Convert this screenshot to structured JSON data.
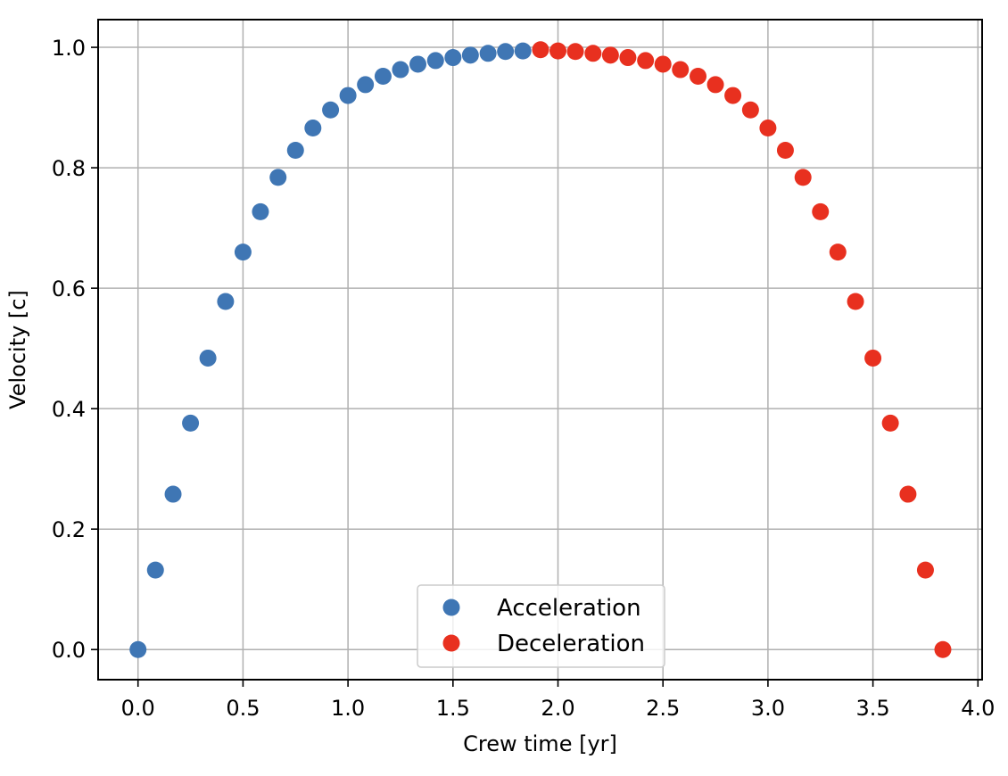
{
  "chart_data": {
    "type": "scatter",
    "title": "",
    "xlabel": "Crew time [yr]",
    "ylabel": "Velocity [c]",
    "xlim": [
      -0.19,
      4.02
    ],
    "ylim": [
      -0.05,
      1.046
    ],
    "xticks": [
      0.0,
      0.5,
      1.0,
      1.5,
      2.0,
      2.5,
      3.0,
      3.5,
      4.0
    ],
    "xtick_labels": [
      "0.0",
      "0.5",
      "1.0",
      "1.5",
      "2.0",
      "2.5",
      "3.0",
      "3.5",
      "4.0"
    ],
    "yticks": [
      0.0,
      0.2,
      0.4,
      0.6,
      0.8,
      1.0
    ],
    "ytick_labels": [
      "0.0",
      "0.2",
      "0.4",
      "0.6",
      "0.8",
      "1.0"
    ],
    "grid": true,
    "legend_position": "lower center",
    "series": [
      {
        "name": "Acceleration",
        "color": "#3f76b4",
        "x": [
          0.0,
          0.083,
          0.167,
          0.25,
          0.333,
          0.417,
          0.5,
          0.583,
          0.667,
          0.75,
          0.833,
          0.917,
          1.0,
          1.083,
          1.167,
          1.25,
          1.333,
          1.417,
          1.5,
          1.583,
          1.667,
          1.75,
          1.833
        ],
        "y": [
          0.0,
          0.132,
          0.258,
          0.376,
          0.484,
          0.578,
          0.66,
          0.727,
          0.784,
          0.829,
          0.866,
          0.896,
          0.92,
          0.938,
          0.952,
          0.963,
          0.972,
          0.978,
          0.983,
          0.987,
          0.99,
          0.993,
          0.994
        ]
      },
      {
        "name": "Deceleration",
        "color": "#e8301f",
        "x": [
          1.917,
          2.0,
          2.083,
          2.167,
          2.25,
          2.333,
          2.417,
          2.5,
          2.583,
          2.667,
          2.75,
          2.833,
          2.917,
          3.0,
          3.083,
          3.167,
          3.25,
          3.333,
          3.417,
          3.5,
          3.583,
          3.667,
          3.75,
          3.833
        ],
        "y": [
          0.996,
          0.994,
          0.993,
          0.99,
          0.987,
          0.983,
          0.978,
          0.972,
          0.963,
          0.952,
          0.938,
          0.92,
          0.896,
          0.866,
          0.829,
          0.784,
          0.727,
          0.66,
          0.578,
          0.484,
          0.376,
          0.258,
          0.132,
          0.0
        ]
      }
    ]
  }
}
